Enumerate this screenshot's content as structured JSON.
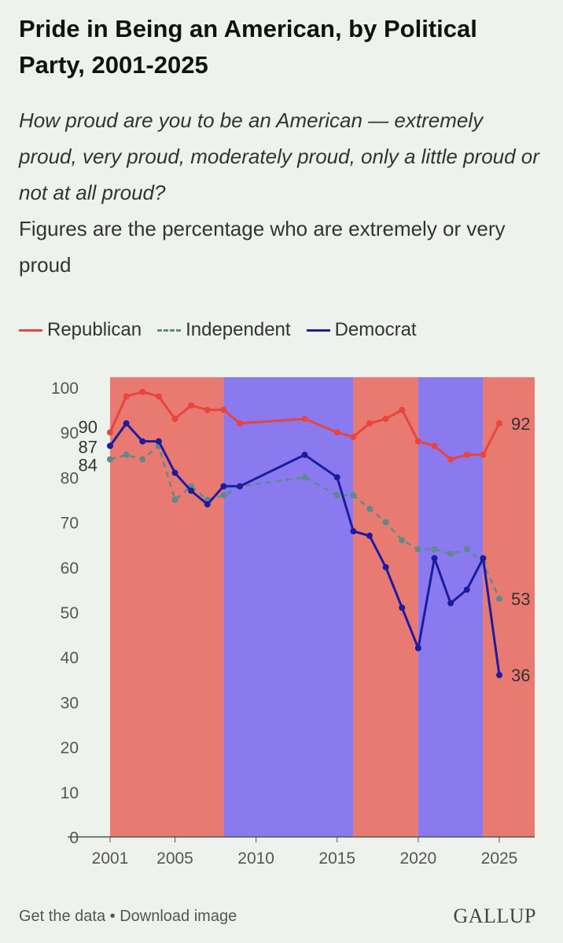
{
  "header": {
    "title": "Pride in Being an American, by Political Party, 2001-2025",
    "subtitle": "How proud are you to be an American — extremely proud, very proud, moderately proud, only a little proud or not at all proud?",
    "note": "Figures are the percentage who are extremely or very proud"
  },
  "legend": {
    "items": [
      {
        "label": "Republican",
        "color": "#e8453c",
        "style": "solid"
      },
      {
        "label": "Independent",
        "color": "#5e8a8c",
        "style": "dashed"
      },
      {
        "label": "Democrat",
        "color": "#1c1c9e",
        "style": "solid"
      }
    ]
  },
  "footer": {
    "get_data": "Get the data",
    "separator": "•",
    "download": "Download image",
    "brand": "GALLUP"
  },
  "chart_data": {
    "type": "line",
    "ylim": [
      0,
      100
    ],
    "xlim": [
      2001,
      2025
    ],
    "y_ticks": [
      0,
      10,
      20,
      30,
      40,
      50,
      60,
      70,
      80,
      90,
      100
    ],
    "x_ticks": [
      2001,
      2005,
      2010,
      2015,
      2020,
      2025
    ],
    "background_bands": [
      {
        "from": 2001,
        "to": 2008,
        "color": "#e87a72"
      },
      {
        "from": 2008,
        "to": 2016,
        "color": "#8b79f0"
      },
      {
        "from": 2016,
        "to": 2020,
        "color": "#e87a72"
      },
      {
        "from": 2020,
        "to": 2024,
        "color": "#8b79f0"
      },
      {
        "from": 2024,
        "to": 2025.3,
        "color": "#e87a72"
      }
    ],
    "series": [
      {
        "name": "Republican",
        "color": "#e8453c",
        "style": "solid",
        "x": [
          2001,
          2002,
          2003,
          2004,
          2005,
          2006,
          2007,
          2008,
          2009,
          2013,
          2015,
          2016,
          2017,
          2018,
          2019,
          2020,
          2021,
          2022,
          2023,
          2024,
          2025
        ],
        "y": [
          90,
          98,
          99,
          98,
          93,
          96,
          95,
          95,
          92,
          93,
          90,
          89,
          92,
          93,
          95,
          88,
          87,
          84,
          85,
          85,
          92
        ]
      },
      {
        "name": "Independent",
        "color": "#5e8a8c",
        "style": "dashed",
        "x": [
          2001,
          2002,
          2003,
          2004,
          2005,
          2006,
          2007,
          2008,
          2009,
          2013,
          2015,
          2016,
          2017,
          2018,
          2019,
          2020,
          2021,
          2022,
          2023,
          2024,
          2025
        ],
        "y": [
          84,
          85,
          84,
          87,
          75,
          78,
          75,
          76,
          78,
          80,
          76,
          76,
          73,
          70,
          66,
          64,
          64,
          63,
          64,
          61,
          53
        ]
      },
      {
        "name": "Democrat",
        "color": "#1c1c9e",
        "style": "solid",
        "x": [
          2001,
          2002,
          2003,
          2004,
          2005,
          2006,
          2007,
          2008,
          2009,
          2013,
          2015,
          2016,
          2017,
          2018,
          2019,
          2020,
          2021,
          2022,
          2023,
          2024,
          2025
        ],
        "y": [
          87,
          92,
          88,
          88,
          81,
          77,
          74,
          78,
          78,
          85,
          80,
          68,
          67,
          60,
          51,
          42,
          62,
          52,
          55,
          62,
          36
        ]
      }
    ],
    "start_labels": [
      {
        "series": "Republican",
        "text": "90"
      },
      {
        "series": "Democrat",
        "text": "87"
      },
      {
        "series": "Independent",
        "text": "84"
      }
    ],
    "end_labels": [
      {
        "series": "Republican",
        "text": "92"
      },
      {
        "series": "Independent",
        "text": "53"
      },
      {
        "series": "Democrat",
        "text": "36"
      }
    ]
  }
}
